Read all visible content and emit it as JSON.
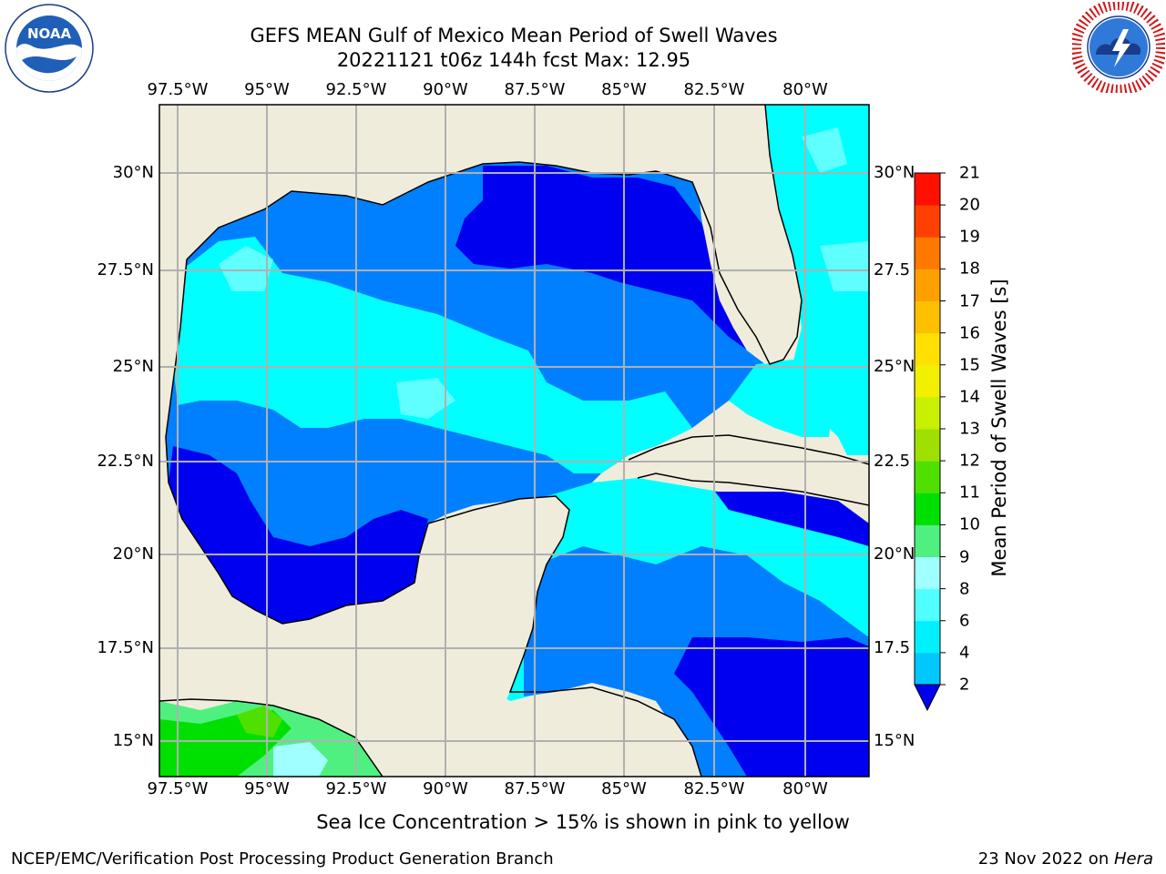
{
  "header": {
    "title": "GEFS MEAN Gulf of Mexico Mean Period of Swell Waves",
    "subtitle": "20221121 t06z 144h fcst   Max: 12.95"
  },
  "logos": {
    "left": {
      "text": "NOAA",
      "ring_text": "NATIONAL OCEANIC AND ATMOSPHERIC ADMINISTRATION · U.S. DEPARTMENT OF COMMERCE"
    },
    "right": {
      "ring_text": "NATIONAL WEATHER SERVICE"
    }
  },
  "map": {
    "lon_ticks": [
      "97.5°W",
      "95°W",
      "92.5°W",
      "90°W",
      "87.5°W",
      "85°W",
      "82.5°W",
      "80°W"
    ],
    "lat_ticks_left": [
      "30°N",
      "27.5°N",
      "25°N",
      "22.5°N",
      "20°N",
      "17.5°N",
      "15°N"
    ],
    "lat_ticks_right": [
      "30°N",
      "27.5",
      "25°N",
      "22.5",
      "20°N",
      "17.5",
      "15°N"
    ],
    "land_color": "#efecdc",
    "grid": true
  },
  "colorbar": {
    "label": "Mean Period of Swell Waves [s]",
    "ticks": [
      "2",
      "4",
      "6",
      "8",
      "9",
      "10",
      "11",
      "12",
      "13",
      "14",
      "15",
      "16",
      "17",
      "18",
      "19",
      "20",
      "21"
    ],
    "colors": [
      "#0050ff",
      "#00c8ff",
      "#00f0ff",
      "#50ffff",
      "#a0ffff",
      "#50f080",
      "#00e000",
      "#50e000",
      "#a0e000",
      "#c8f000",
      "#f0f000",
      "#ffe000",
      "#ffc000",
      "#ffa000",
      "#ff7800",
      "#ff4000",
      "#ff1000"
    ],
    "under_color": "#0000f0"
  },
  "legend": {
    "levels": {
      "blue_dark": "#0000f0",
      "blue": "#0080ff",
      "cyan": "#00ffff",
      "light_cyan": "#60ffff"
    }
  },
  "note": "Sea Ice Concentration > 15% is shown in pink to yellow",
  "footer": {
    "left": "NCEP/EMC/Verification Post Processing Product Generation Branch",
    "date": "23 Nov 2022 on ",
    "host": "Hera"
  }
}
